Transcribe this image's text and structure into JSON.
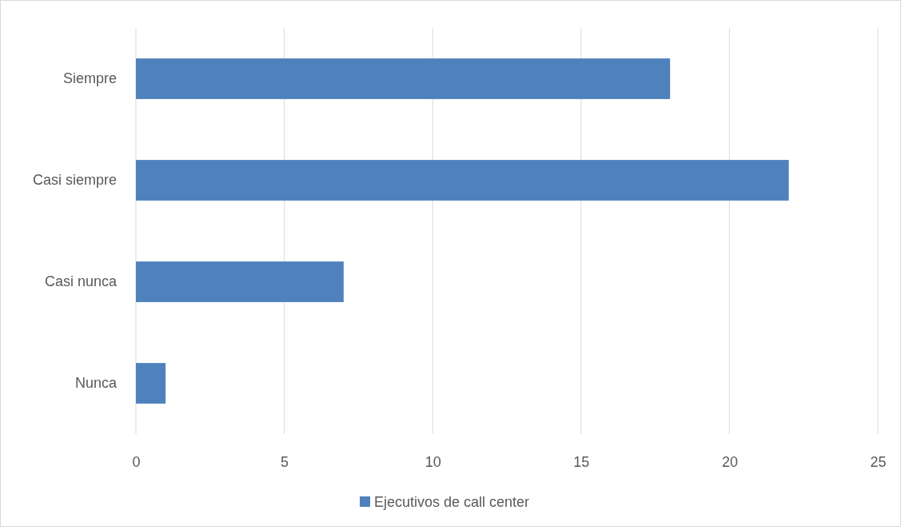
{
  "chart_data": {
    "type": "bar",
    "orientation": "horizontal",
    "categories": [
      "Siempre",
      "Casi siempre",
      "Casi nunca",
      "Nunca"
    ],
    "series": [
      {
        "name": "Ejecutivos de call center",
        "color": "#4f81bd",
        "values": [
          18,
          22,
          7,
          1
        ]
      }
    ],
    "xlim": [
      0,
      25
    ],
    "xticks": [
      0,
      5,
      10,
      15,
      20,
      25
    ],
    "grid": "x",
    "legend": "bottom"
  }
}
